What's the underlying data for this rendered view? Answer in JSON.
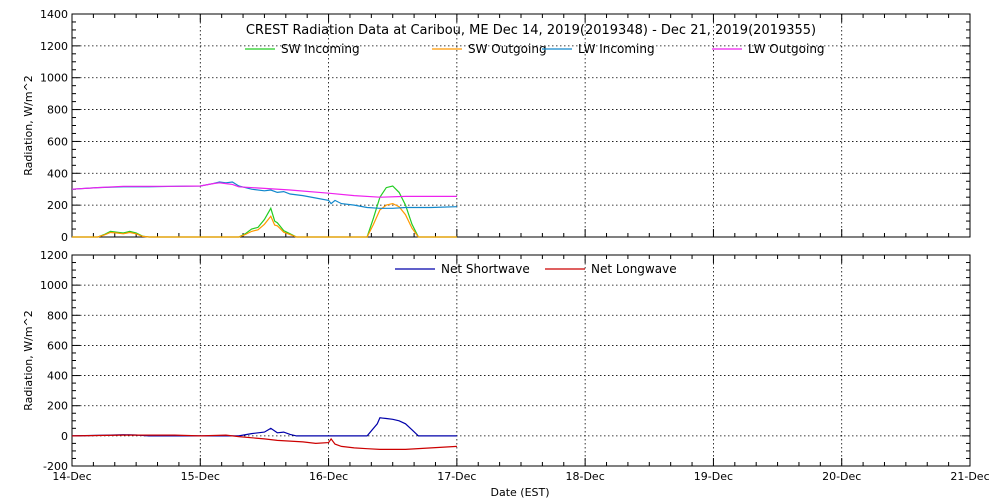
{
  "chart_data": [
    {
      "type": "line",
      "title": "CREST Radiation Data at Caribou, ME   Dec 14, 2019(2019348) - Dec 21, 2019(2019355)",
      "ylabel": "Radiation, W/m^2",
      "xlabel": "",
      "ylim": [
        0,
        1400
      ],
      "yticks": [
        0,
        200,
        400,
        600,
        800,
        1000,
        1200,
        1400
      ],
      "xlim": [
        0,
        7
      ],
      "xticks": [
        0,
        1,
        2,
        3,
        4,
        5,
        6,
        7
      ],
      "grid": true,
      "legend": "top-inside",
      "series": [
        {
          "name": "SW Incoming",
          "color": "#22cc22",
          "x": [
            0,
            0.2,
            0.25,
            0.3,
            0.35,
            0.4,
            0.45,
            0.5,
            0.55,
            0.6,
            1.3,
            1.35,
            1.4,
            1.45,
            1.5,
            1.55,
            1.58,
            1.6,
            1.62,
            1.65,
            1.7,
            1.75,
            2.0,
            2.3,
            2.35,
            2.4,
            2.45,
            2.5,
            2.55,
            2.6,
            2.65,
            2.7,
            3.0
          ],
          "y": [
            0,
            0,
            15,
            35,
            30,
            25,
            35,
            25,
            5,
            0,
            0,
            20,
            50,
            60,
            110,
            180,
            100,
            90,
            70,
            40,
            20,
            0,
            0,
            0,
            120,
            250,
            310,
            320,
            280,
            200,
            80,
            0,
            0
          ]
        },
        {
          "name": "SW Outgoing",
          "color": "#ff9900",
          "x": [
            0,
            0.2,
            0.25,
            0.3,
            0.35,
            0.4,
            0.45,
            0.5,
            0.55,
            0.6,
            1.3,
            1.35,
            1.4,
            1.45,
            1.5,
            1.55,
            1.58,
            1.6,
            1.62,
            1.65,
            1.7,
            1.75,
            2.0,
            2.3,
            2.35,
            2.4,
            2.45,
            2.5,
            2.55,
            2.6,
            2.65,
            2.7,
            3.0
          ],
          "y": [
            0,
            0,
            12,
            28,
            25,
            20,
            28,
            20,
            4,
            0,
            0,
            15,
            35,
            45,
            80,
            130,
            75,
            70,
            55,
            30,
            15,
            0,
            0,
            0,
            80,
            170,
            200,
            210,
            190,
            140,
            55,
            0,
            0
          ]
        },
        {
          "name": "LW Incoming",
          "color": "#1188cc",
          "x": [
            0,
            0.2,
            0.4,
            0.6,
            0.8,
            1.0,
            1.1,
            1.15,
            1.2,
            1.25,
            1.3,
            1.4,
            1.5,
            1.55,
            1.6,
            1.65,
            1.7,
            1.8,
            1.9,
            2.0,
            2.02,
            2.05,
            2.1,
            2.2,
            2.3,
            2.4,
            2.5,
            2.6,
            2.8,
            3.0
          ],
          "y": [
            300,
            310,
            315,
            315,
            318,
            320,
            335,
            345,
            340,
            345,
            320,
            300,
            290,
            295,
            280,
            285,
            270,
            260,
            245,
            230,
            210,
            230,
            210,
            200,
            185,
            180,
            180,
            185,
            185,
            190
          ]
        },
        {
          "name": "LW Outgoing",
          "color": "#ee22ee",
          "x": [
            0,
            0.2,
            0.4,
            0.6,
            0.8,
            1.0,
            1.1,
            1.15,
            1.2,
            1.25,
            1.3,
            1.5,
            1.7,
            2.0,
            2.2,
            2.4,
            2.6,
            2.8,
            3.0
          ],
          "y": [
            300,
            310,
            318,
            318,
            318,
            320,
            335,
            340,
            335,
            330,
            315,
            305,
            295,
            275,
            260,
            250,
            255,
            255,
            255
          ]
        }
      ]
    },
    {
      "type": "line",
      "ylabel": "Radiation, W/m^2",
      "xlabel": "Date (EST)",
      "ylim": [
        -200,
        1200
      ],
      "yticks": [
        -200,
        0,
        200,
        400,
        600,
        800,
        1000,
        1200
      ],
      "xlim": [
        0,
        7
      ],
      "xticks": [
        0,
        1,
        2,
        3,
        4,
        5,
        6,
        7
      ],
      "xtick_labels": [
        "14-Dec",
        "15-Dec",
        "16-Dec",
        "17-Dec",
        "18-Dec",
        "19-Dec",
        "20-Dec",
        "21-Dec"
      ],
      "grid": true,
      "legend": "top-inside",
      "series": [
        {
          "name": "Net Shortwave",
          "color": "#0000aa",
          "x": [
            0,
            0.3,
            0.4,
            0.5,
            0.6,
            1.3,
            1.4,
            1.5,
            1.55,
            1.6,
            1.65,
            1.7,
            1.75,
            2.0,
            2.3,
            2.38,
            2.4,
            2.45,
            2.5,
            2.55,
            2.6,
            2.65,
            2.7,
            3.0
          ],
          "y": [
            0,
            5,
            8,
            6,
            0,
            0,
            15,
            25,
            50,
            20,
            25,
            10,
            0,
            0,
            0,
            80,
            120,
            115,
            110,
            100,
            80,
            40,
            0,
            0
          ]
        },
        {
          "name": "Net Longwave",
          "color": "#cc0000",
          "x": [
            0,
            0.4,
            0.8,
            1.0,
            1.2,
            1.3,
            1.5,
            1.6,
            1.7,
            1.8,
            1.9,
            2.0,
            2.02,
            2.05,
            2.1,
            2.2,
            2.3,
            2.4,
            2.5,
            2.6,
            2.8,
            3.0
          ],
          "y": [
            0,
            5,
            5,
            0,
            5,
            -5,
            -20,
            -30,
            -35,
            -40,
            -50,
            -45,
            -20,
            -55,
            -70,
            -80,
            -85,
            -90,
            -90,
            -90,
            -80,
            -70
          ]
        }
      ]
    }
  ]
}
